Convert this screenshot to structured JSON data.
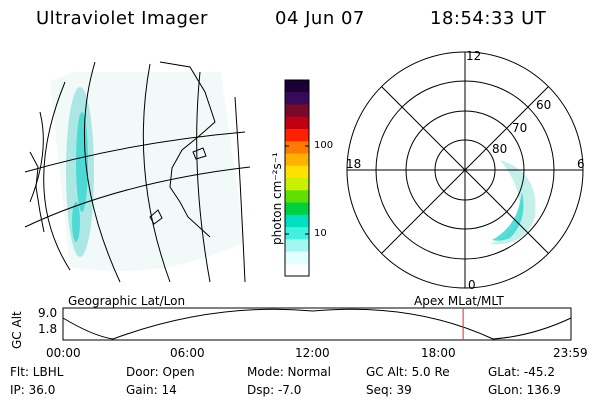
{
  "header": {
    "title": "Ultraviolet Imager",
    "date": "04 Jun 07",
    "time": "18:54:33 UT"
  },
  "left_panel": {
    "caption": "Geographic Lat/Lon"
  },
  "right_panel": {
    "caption": "Apex MLat/MLT",
    "mlt_labels": {
      "top": "12",
      "left": "18",
      "right": "6",
      "bottom": "0"
    },
    "lat_labels": [
      "60",
      "70",
      "80"
    ]
  },
  "colorbar": {
    "label": "photon cm⁻²s⁻¹",
    "ticks": [
      "100",
      "10"
    ],
    "scale": "log",
    "colors": [
      "#1a0033",
      "#3a0a5a",
      "#7a0a2a",
      "#c00010",
      "#ff2000",
      "#ff7a00",
      "#ffb000",
      "#ffe000",
      "#c8f000",
      "#60e000",
      "#00d040",
      "#00e0c0",
      "#40f0e0",
      "#a0f8f0",
      "#e0ffff",
      "#ffffff"
    ]
  },
  "timeline": {
    "axis_label": "GC Alt",
    "ytick_top": "9.0",
    "ytick_bottom": "1.8",
    "xticks": [
      "00:00",
      "06:00",
      "12:00",
      "18:00",
      "23:59"
    ],
    "current_time_fraction": 0.7875,
    "marker_color": "#d03030"
  },
  "footer": {
    "flt": "Flt: LBHL",
    "ip": "IP: 36.0",
    "door": "Door: Open",
    "gain": "Gain: 14",
    "mode": "Mode: Normal",
    "dsp": "Dsp:    -7.0",
    "gc_alt": "GC Alt: 5.0 Re",
    "seq": "Seq: 39",
    "glat": "GLat: -45.2",
    "glon": "GLon: 136.9"
  }
}
